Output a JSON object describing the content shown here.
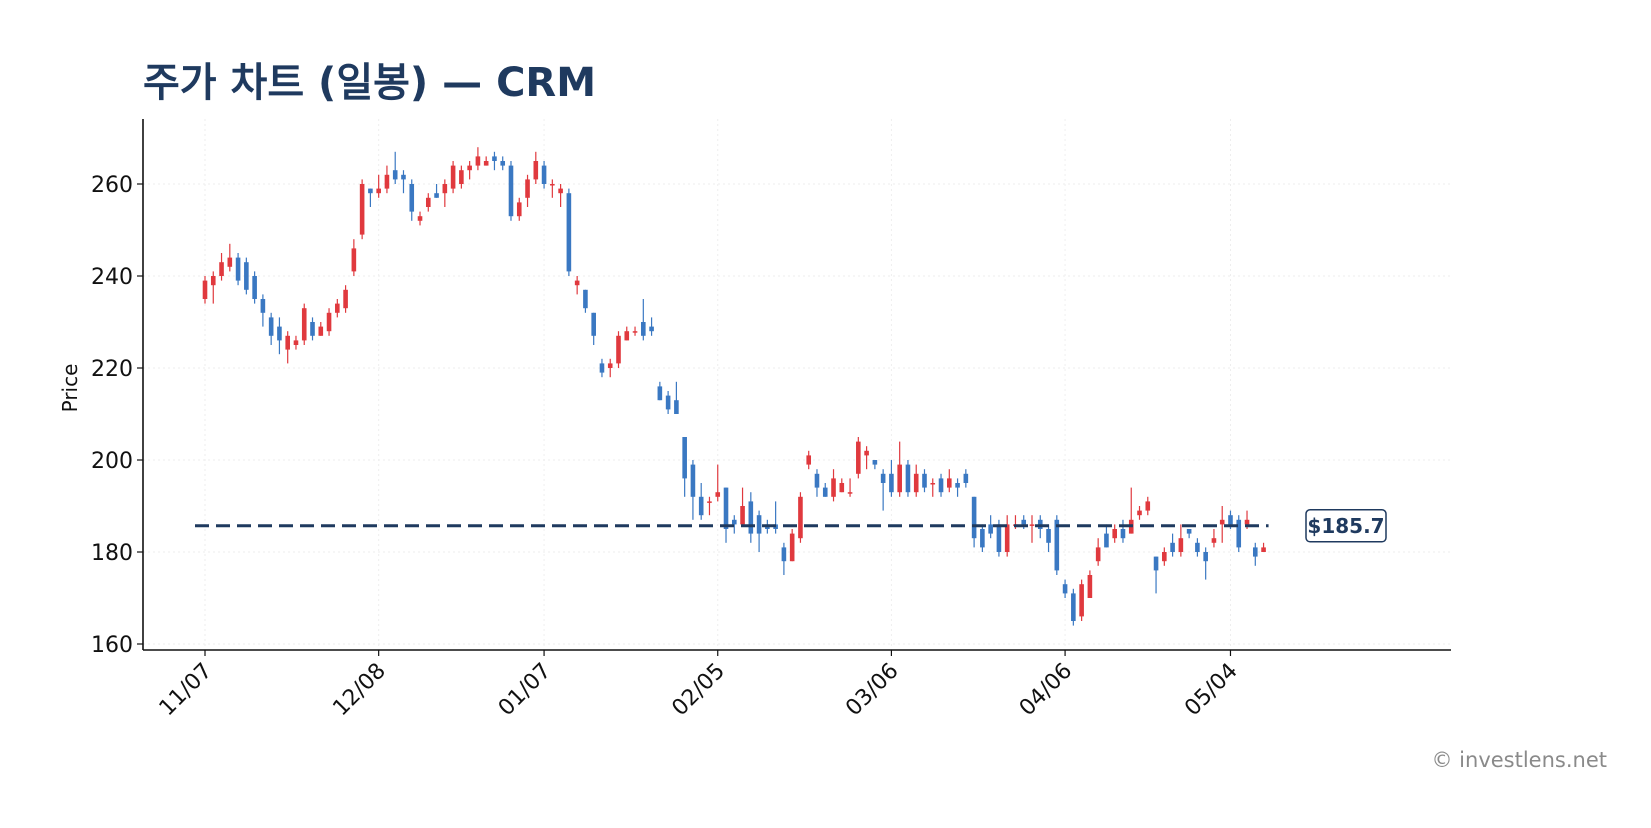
{
  "title": "주가 차트 (일봉) — CRM",
  "watermark": "© investlens.net",
  "colors": {
    "up": "#e0393e",
    "down": "#3a78c2",
    "reference": "#1f3a5f",
    "title": "#1f3a5f",
    "grid": "#eeeeee"
  },
  "chart_data": {
    "type": "candlestick",
    "ticker": "CRM",
    "title": "주가 차트 (일봉) — CRM",
    "ylabel": "Price",
    "ylim": [
      160,
      274
    ],
    "yticks": [
      160,
      180,
      200,
      220,
      240,
      260
    ],
    "grid": true,
    "xtick_labels": [
      "11/07",
      "12/08",
      "01/07",
      "02/05",
      "03/06",
      "04/06",
      "05/04"
    ],
    "xtick_index": [
      0,
      21,
      41,
      62,
      83,
      104,
      124
    ],
    "reference_line": {
      "value": 185.7,
      "label": "$185.7"
    },
    "candles": [
      [
        235,
        239,
        240,
        234
      ],
      [
        238,
        240,
        241,
        234
      ],
      [
        240,
        243,
        245,
        239
      ],
      [
        242,
        244,
        247,
        241
      ],
      [
        244,
        239,
        245,
        238
      ],
      [
        243,
        237,
        244,
        236
      ],
      [
        240,
        235,
        241,
        234
      ],
      [
        235,
        232,
        236,
        229
      ],
      [
        231,
        227,
        232,
        225
      ],
      [
        229,
        226,
        231,
        223
      ],
      [
        224,
        227,
        228,
        221
      ],
      [
        225,
        226,
        227,
        224
      ],
      [
        226,
        233,
        234,
        225
      ],
      [
        230,
        227,
        231,
        226
      ],
      [
        227,
        229,
        230,
        227
      ],
      [
        228,
        232,
        233,
        227
      ],
      [
        232,
        234,
        235,
        231
      ],
      [
        233,
        237,
        238,
        232
      ],
      [
        241,
        246,
        248,
        240
      ],
      [
        249,
        260,
        261,
        248
      ],
      [
        259,
        258,
        259,
        255
      ],
      [
        258,
        259,
        262,
        257
      ],
      [
        259,
        262,
        264,
        258
      ],
      [
        263,
        261,
        267,
        260
      ],
      [
        262,
        261,
        263,
        258
      ],
      [
        260,
        254,
        261,
        252
      ],
      [
        252,
        253,
        254,
        251
      ],
      [
        255,
        257,
        258,
        254
      ],
      [
        258,
        257,
        260,
        257
      ],
      [
        258,
        260,
        261,
        255
      ],
      [
        259,
        264,
        265,
        258
      ],
      [
        260,
        263,
        264,
        259
      ],
      [
        263,
        264,
        265,
        261
      ],
      [
        264,
        266,
        268,
        263
      ],
      [
        264,
        265,
        266,
        264
      ],
      [
        266,
        265,
        267,
        263
      ],
      [
        265,
        264,
        266,
        263
      ],
      [
        264,
        253,
        265,
        252
      ],
      [
        253,
        256,
        257,
        252
      ],
      [
        257,
        261,
        262,
        255
      ],
      [
        261,
        265,
        267,
        260
      ],
      [
        264,
        260,
        265,
        259
      ],
      [
        260,
        260,
        261,
        257
      ],
      [
        258,
        259,
        260,
        255
      ],
      [
        258,
        241,
        259,
        240
      ],
      [
        238,
        239,
        240,
        236
      ],
      [
        237,
        233,
        237,
        232
      ],
      [
        232,
        227,
        232,
        225
      ],
      [
        221,
        219,
        222,
        218
      ],
      [
        220,
        221,
        222,
        218
      ],
      [
        221,
        227,
        228,
        220
      ],
      [
        226,
        228,
        229,
        226
      ],
      [
        228,
        228,
        229,
        227
      ],
      [
        230,
        227,
        235,
        226
      ],
      [
        229,
        228,
        231,
        227
      ],
      [
        216,
        213,
        217,
        213
      ],
      [
        214,
        211,
        215,
        210
      ],
      [
        213,
        210,
        217,
        210
      ],
      [
        205,
        196,
        205,
        192
      ],
      [
        199,
        192,
        200,
        187
      ],
      [
        192,
        188,
        195,
        187
      ],
      [
        191,
        191,
        192,
        188
      ],
      [
        192,
        193,
        199,
        191
      ],
      [
        194,
        185,
        194,
        182
      ],
      [
        187,
        186,
        188,
        184
      ],
      [
        186,
        190,
        194,
        186
      ],
      [
        191,
        184,
        193,
        182
      ],
      [
        188,
        184,
        189,
        180
      ],
      [
        186,
        185,
        187,
        184
      ],
      [
        186,
        185,
        191,
        184
      ],
      [
        181,
        178,
        182,
        175
      ],
      [
        178,
        184,
        185,
        178
      ],
      [
        183,
        192,
        193,
        182
      ],
      [
        199,
        201,
        202,
        198
      ],
      [
        197,
        194,
        198,
        192
      ],
      [
        194,
        192,
        195,
        192
      ],
      [
        192,
        196,
        198,
        191
      ],
      [
        193,
        195,
        196,
        193
      ],
      [
        193,
        193,
        196,
        192
      ],
      [
        197,
        204,
        205,
        196
      ],
      [
        201,
        202,
        203,
        198
      ],
      [
        200,
        199,
        200,
        198
      ],
      [
        197,
        195,
        198,
        189
      ],
      [
        197,
        193,
        200,
        192
      ],
      [
        193,
        199,
        204,
        192
      ],
      [
        199,
        193,
        200,
        192
      ],
      [
        193,
        197,
        199,
        192
      ],
      [
        197,
        194,
        198,
        193
      ],
      [
        195,
        195,
        196,
        192
      ],
      [
        196,
        193,
        197,
        192
      ],
      [
        194,
        196,
        198,
        193
      ],
      [
        195,
        194,
        196,
        192
      ],
      [
        197,
        195,
        198,
        194
      ],
      [
        192,
        183,
        192,
        181
      ],
      [
        185,
        181,
        186,
        180
      ],
      [
        186,
        184,
        188,
        183
      ],
      [
        186,
        180,
        187,
        179
      ],
      [
        180,
        186,
        188,
        179
      ],
      [
        186,
        186,
        188,
        185
      ],
      [
        187,
        186,
        188,
        185
      ],
      [
        186,
        186,
        188,
        182
      ],
      [
        187,
        185,
        188,
        183
      ],
      [
        185,
        182,
        186,
        180
      ],
      [
        187,
        176,
        188,
        175
      ],
      [
        173,
        171,
        174,
        170
      ],
      [
        171,
        165,
        172,
        164
      ],
      [
        166,
        173,
        174,
        165
      ],
      [
        170,
        175,
        176,
        170
      ],
      [
        178,
        181,
        183,
        177
      ],
      [
        184,
        181,
        186,
        181
      ],
      [
        183,
        185,
        186,
        182
      ],
      [
        185,
        183,
        187,
        182
      ],
      [
        184,
        187,
        194,
        184
      ],
      [
        188,
        189,
        190,
        187
      ],
      [
        189,
        191,
        192,
        188
      ],
      [
        179,
        176,
        179,
        171
      ],
      [
        178,
        180,
        181,
        177
      ],
      [
        182,
        180,
        184,
        179
      ],
      [
        180,
        183,
        186,
        179
      ],
      [
        185,
        184,
        185,
        183
      ],
      [
        182,
        180,
        183,
        179
      ],
      [
        180,
        178,
        181,
        174
      ],
      [
        182,
        183,
        185,
        181
      ],
      [
        186,
        187,
        190,
        182
      ],
      [
        188,
        186,
        189,
        185
      ],
      [
        187,
        181,
        188,
        180
      ],
      [
        186,
        187,
        189,
        185
      ],
      [
        181,
        179,
        182,
        177
      ],
      [
        180,
        181,
        182,
        180
      ]
    ]
  }
}
